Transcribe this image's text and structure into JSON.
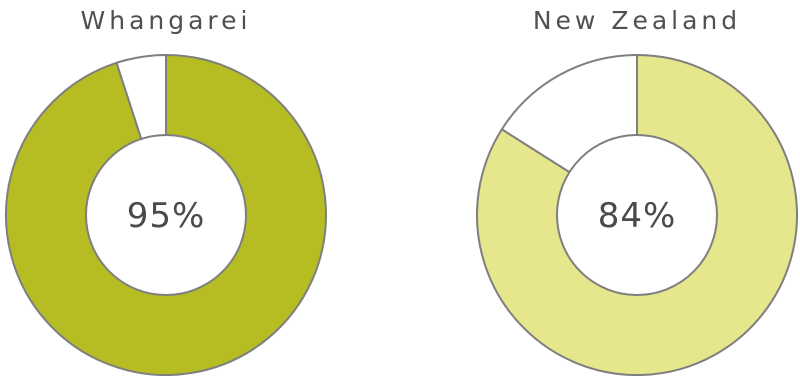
{
  "chart_data": [
    {
      "type": "pie",
      "variant": "donut",
      "title": "Whangarei",
      "center_label": "95%",
      "slices": [
        {
          "value": 95,
          "color": "#b5bd22"
        },
        {
          "value": 5,
          "color": "#ffffff"
        }
      ],
      "stroke_color": "#7f7f7f"
    },
    {
      "type": "pie",
      "variant": "donut",
      "title": "New Zealand",
      "center_label": "84%",
      "slices": [
        {
          "value": 84,
          "color": "#e6e68c"
        },
        {
          "value": 16,
          "color": "#ffffff"
        }
      ],
      "stroke_color": "#7f7f7f"
    }
  ]
}
